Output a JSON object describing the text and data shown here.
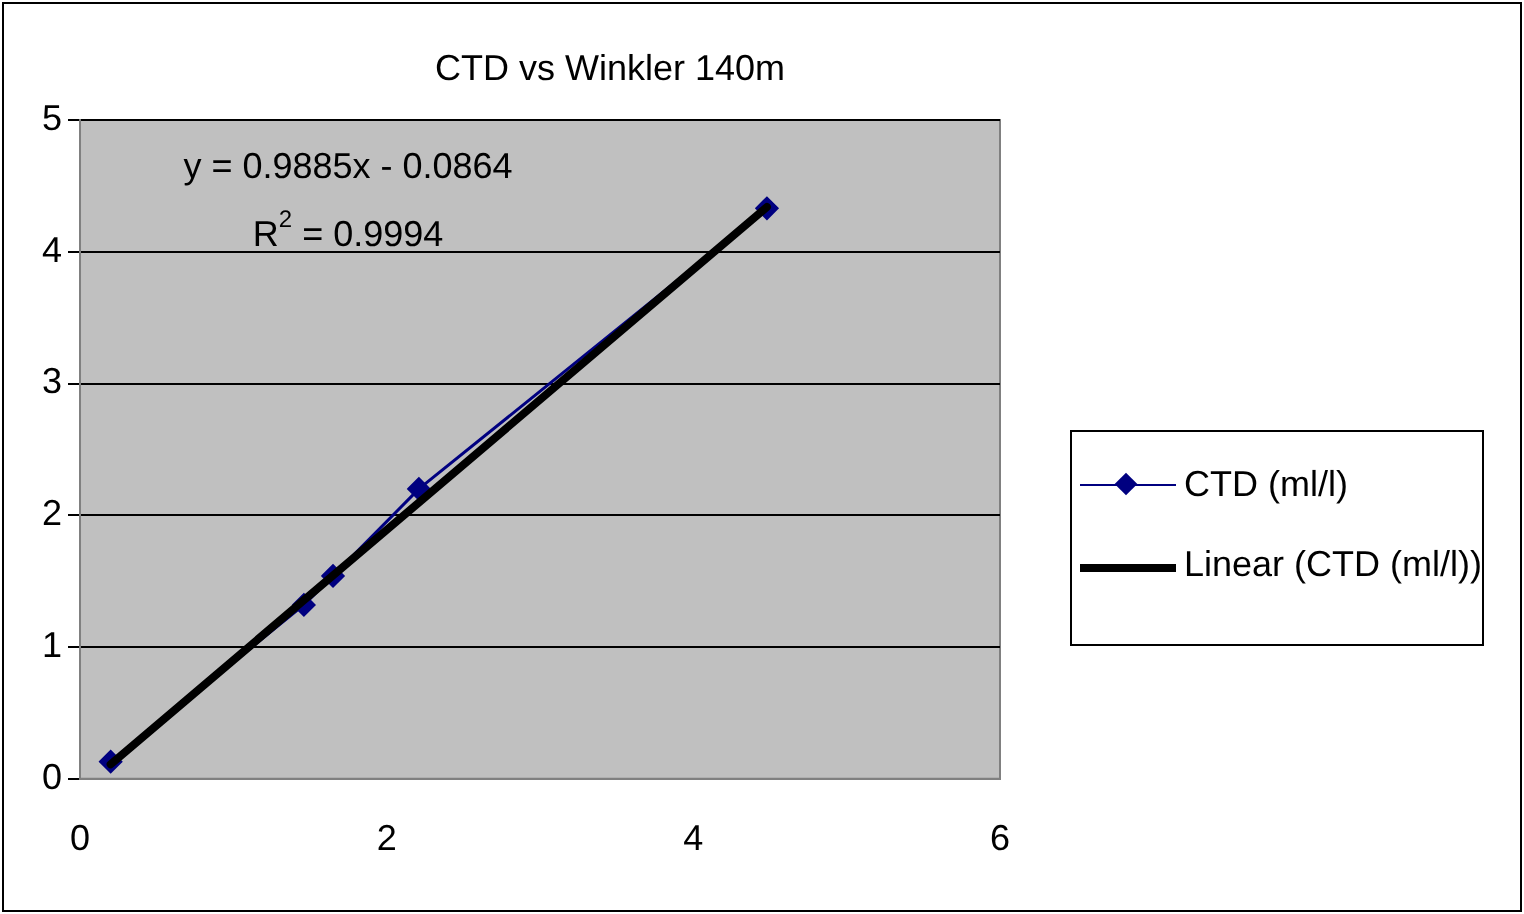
{
  "chart_data": {
    "type": "line",
    "title": "CTD vs Winkler 140m",
    "series": [
      {
        "name": "CTD (ml/l)",
        "type": "line",
        "color": "#000080",
        "marker": "diamond",
        "x": [
          0.2,
          1.46,
          1.65,
          2.21,
          4.48
        ],
        "values": [
          0.13,
          1.32,
          1.54,
          2.2,
          4.33
        ]
      },
      {
        "name": "Linear (CTD (ml/l))",
        "type": "line",
        "color": "#000000",
        "marker": "none",
        "x": [
          0.2,
          4.48
        ],
        "values": [
          0.11,
          4.34
        ]
      }
    ],
    "xlim": [
      0,
      6
    ],
    "xticks": [
      0,
      2,
      4,
      6
    ],
    "ylim": [
      0,
      5
    ],
    "yticks": [
      0,
      1,
      2,
      3,
      4,
      5
    ],
    "grid": "y",
    "legend": "right",
    "annotations": [
      "y = 0.9885x - 0.0864",
      "R$^{2}$ = 0.9994"
    ]
  }
}
